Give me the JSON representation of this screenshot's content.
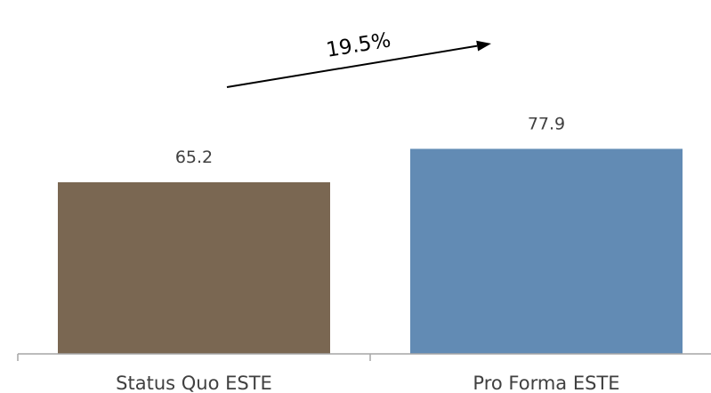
{
  "chart_data": {
    "type": "bar",
    "categories": [
      "Status Quo ESTE",
      "Pro Forma ESTE"
    ],
    "values": [
      65.2,
      77.9
    ],
    "data_labels": [
      "65.2",
      "77.9"
    ],
    "colors": [
      "#7a6752",
      "#628bb4"
    ],
    "ylim": [
      0,
      86
    ],
    "grid": false,
    "legend": "none",
    "annotation": {
      "text": "19.5%",
      "type": "arrow-up-right",
      "color": "#000000"
    }
  }
}
